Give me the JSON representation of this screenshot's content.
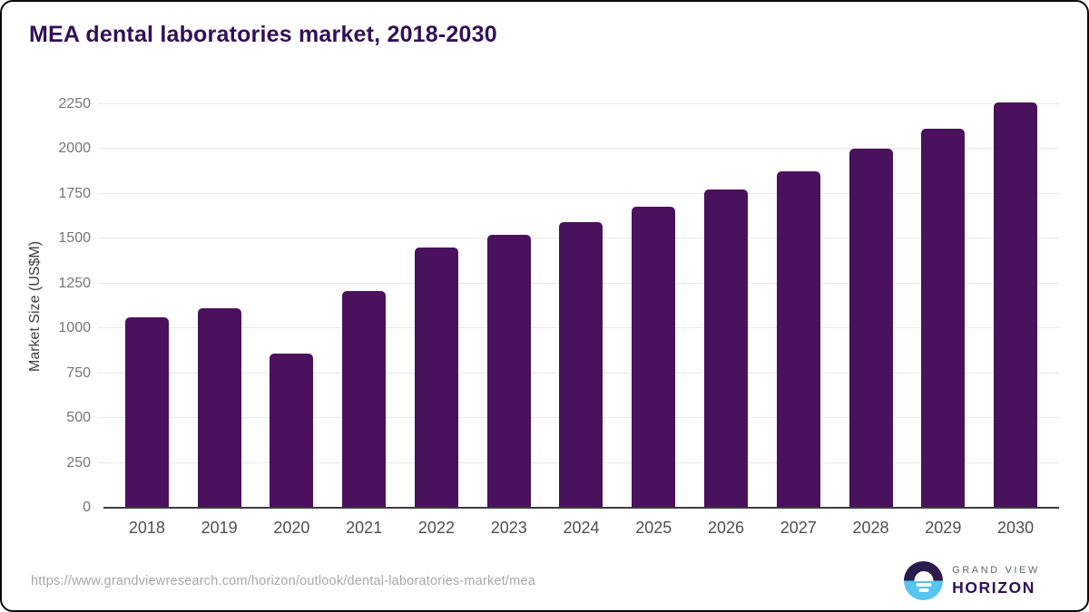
{
  "chart": {
    "title": "MEA dental laboratories market, 2018-2030",
    "y_axis_title": "Market Size (US$M)"
  },
  "chart_data": {
    "type": "bar",
    "title": "MEA dental laboratories market, 2018-2030",
    "categories": [
      "2018",
      "2019",
      "2020",
      "2021",
      "2022",
      "2023",
      "2024",
      "2025",
      "2026",
      "2027",
      "2028",
      "2029",
      "2030"
    ],
    "values": [
      1060,
      1110,
      860,
      1210,
      1450,
      1520,
      1595,
      1680,
      1775,
      1875,
      2000,
      2115,
      2260
    ],
    "xlabel": "",
    "ylabel": "Market Size (US$M)",
    "ylim": [
      0,
      2250
    ],
    "ytick_interval": 250,
    "grid": true,
    "legend": "none",
    "bar_color": "#4a115c"
  },
  "footer": {
    "source_url": "https://www.grandviewresearch.com/horizon/outlook/dental-laboratories-market/mea",
    "brand_line1": "GRAND VIEW",
    "brand_line2": "HORIZON"
  },
  "colors": {
    "title_text": "#321055",
    "bar_fill": "#4a115c",
    "gridline": "#e9e9ec",
    "axis_line": "#3d3d3d",
    "y_tick_text": "#757575",
    "x_tick_text": "#4f4f4f",
    "url_text": "#a8a8a8",
    "logo_dark": "#2b1c4d",
    "logo_blue": "#58c4f0"
  }
}
